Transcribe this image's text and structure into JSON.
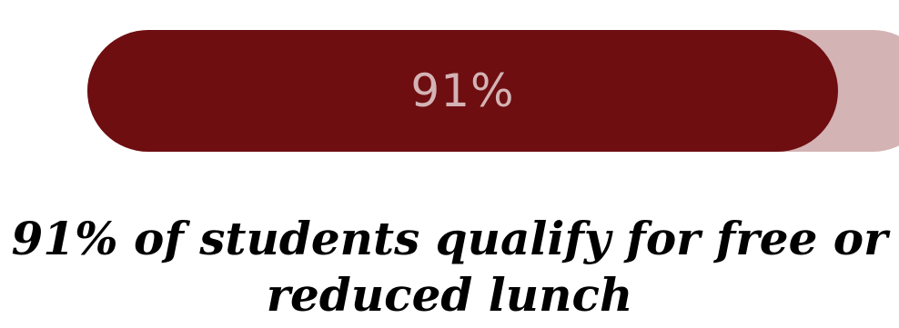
{
  "progress": {
    "value_percent": 91,
    "label": "91%",
    "fill_color": "#6e0e10",
    "track_color": "#d4b3b5"
  },
  "caption": {
    "text": "91% of students qualify for free or reduced lunch"
  }
}
